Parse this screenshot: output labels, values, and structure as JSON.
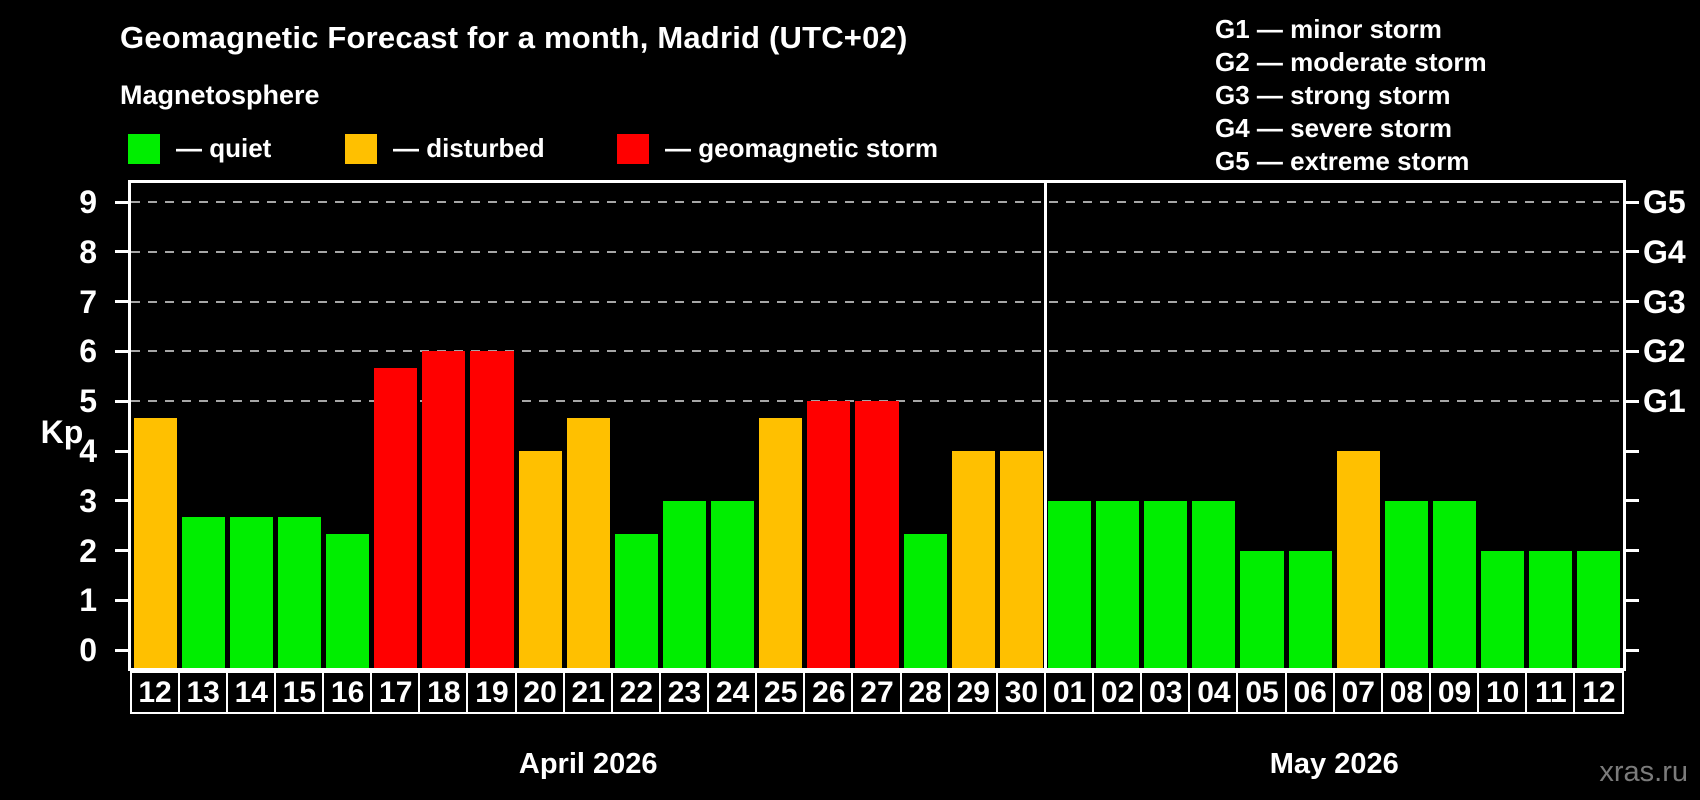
{
  "title": "Geomagnetic Forecast for a month, Madrid (UTC+02)",
  "subtitle": "Magnetosphere",
  "legend": {
    "items": [
      {
        "key": "quiet",
        "label": "— quiet",
        "color": "#00ee00"
      },
      {
        "key": "disturbed",
        "label": "— disturbed",
        "color": "#ffc000"
      },
      {
        "key": "storm",
        "label": "— geomagnetic storm",
        "color": "#ff0000"
      }
    ]
  },
  "g_legend": [
    "G1 — minor storm",
    "G2 — moderate storm",
    "G3 — strong storm",
    "G4 — severe storm",
    "G5 — extreme storm"
  ],
  "axes": {
    "y_label": "Kp",
    "y_ticks": [
      0,
      1,
      2,
      3,
      4,
      5,
      6,
      7,
      8,
      9
    ],
    "gridline_kps": [
      5,
      6,
      7,
      8,
      9
    ],
    "right_labels": [
      {
        "kp": 5,
        "label": "G1"
      },
      {
        "kp": 6,
        "label": "G2"
      },
      {
        "kp": 7,
        "label": "G3"
      },
      {
        "kp": 8,
        "label": "G4"
      },
      {
        "kp": 9,
        "label": "G5"
      }
    ]
  },
  "colors": {
    "quiet": "#00ee00",
    "disturbed": "#ffc000",
    "storm": "#ff0000",
    "grid": "#a6a6a6",
    "axis": "#ffffff",
    "watermark_text": "#7b7b7b"
  },
  "watermark": "xras.ru",
  "chart_data": {
    "type": "bar",
    "title": "Geomagnetic Forecast for a month, Madrid (UTC+02)",
    "xlabel": "",
    "ylabel": "Kp",
    "ylim": [
      0,
      9
    ],
    "grid": "horizontal dashed lines at Kp 5,6,7,8,9 (G1–G5)",
    "legend_position": "top-left",
    "sections": [
      {
        "month_label": "April 2026",
        "days": [
          "12",
          "13",
          "14",
          "15",
          "16",
          "17",
          "18",
          "19",
          "20",
          "21",
          "22",
          "23",
          "24",
          "25",
          "26",
          "27",
          "28",
          "29",
          "30"
        ],
        "values": [
          4.67,
          2.67,
          2.67,
          2.67,
          2.33,
          5.67,
          6,
          6,
          4,
          4.67,
          2.33,
          3,
          3,
          4.67,
          5,
          5,
          2.33,
          4,
          4
        ],
        "states": [
          "disturbed",
          "quiet",
          "quiet",
          "quiet",
          "quiet",
          "storm",
          "storm",
          "storm",
          "disturbed",
          "disturbed",
          "quiet",
          "quiet",
          "quiet",
          "disturbed",
          "storm",
          "storm",
          "quiet",
          "disturbed",
          "disturbed"
        ]
      },
      {
        "month_label": "May 2026",
        "days": [
          "01",
          "02",
          "03",
          "04",
          "05",
          "06",
          "07",
          "08",
          "09",
          "10",
          "11",
          "12"
        ],
        "values": [
          3,
          3,
          3,
          3,
          2,
          2,
          4,
          3,
          3,
          2,
          2,
          2
        ],
        "states": [
          "quiet",
          "quiet",
          "quiet",
          "quiet",
          "quiet",
          "quiet",
          "disturbed",
          "quiet",
          "quiet",
          "quiet",
          "quiet",
          "quiet"
        ]
      }
    ]
  }
}
